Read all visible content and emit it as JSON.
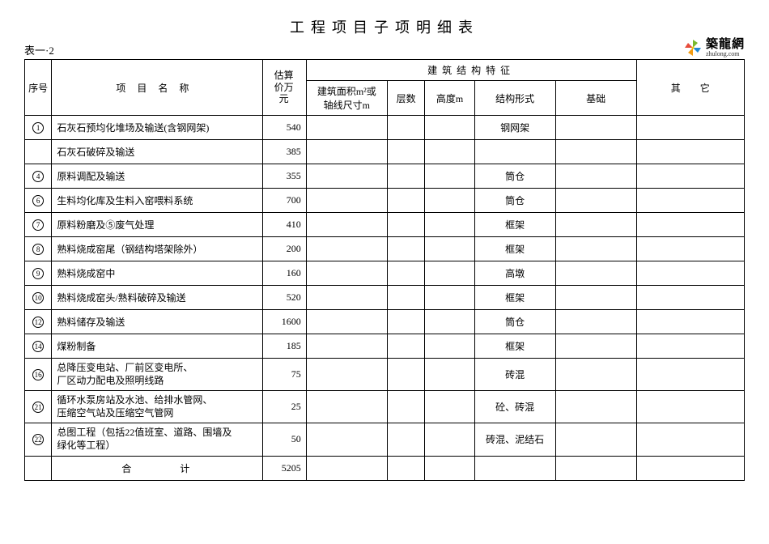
{
  "title": "工程项目子项明细表",
  "table_label": "表一·2",
  "logo": {
    "cn": "築龍網",
    "en": "zhulong.com"
  },
  "headers": {
    "seq": "序号",
    "name": "项目名称",
    "estimate": "估算价万元",
    "struct_group": "建筑结构特征",
    "area": "建筑面积m²或\n轴线尺寸m",
    "floors": "层数",
    "height": "高度m",
    "struct_form": "结构形式",
    "foundation": "基础",
    "other": "其　　它"
  },
  "rows": [
    {
      "seq": "1",
      "name": "石灰石预均化堆场及输送(含钢网架)",
      "est": "540",
      "struct": "钢网架"
    },
    {
      "seq": "",
      "name": "石灰石破碎及输送",
      "est": "385",
      "struct": ""
    },
    {
      "seq": "4",
      "name": "原料调配及输送",
      "est": "355",
      "struct": "筒仓"
    },
    {
      "seq": "6",
      "name": "生料均化库及生料入窑喂料系统",
      "est": "700",
      "struct": "筒仓"
    },
    {
      "seq": "7",
      "name": "原料粉磨及⑤废气处理",
      "est": "410",
      "struct": "框架"
    },
    {
      "seq": "8",
      "name": "熟料烧成窑尾（钢结构塔架除外）",
      "est": "200",
      "struct": "框架"
    },
    {
      "seq": "9",
      "name": "熟料烧成窑中",
      "est": "160",
      "struct": "高墩"
    },
    {
      "seq": "10",
      "name": "熟料烧成窑头/熟料破碎及输送",
      "est": "520",
      "struct": "框架"
    },
    {
      "seq": "12",
      "name": "熟料储存及输送",
      "est": "1600",
      "struct": "筒仓"
    },
    {
      "seq": "14",
      "name": "煤粉制备",
      "est": "185",
      "struct": "框架"
    },
    {
      "seq": "16",
      "name": "总降压变电站、厂前区变电所、\n厂区动力配电及照明线路",
      "est": "75",
      "struct": "砖混",
      "twoline": true
    },
    {
      "seq": "21",
      "name": "循环水泵房站及水池、给排水管网、\n压缩空气站及压缩空气管网",
      "est": "25",
      "struct": "砼、砖混",
      "twoline": true
    },
    {
      "seq": "22",
      "name": "总图工程（包括22值班室、道路、围墙及\n绿化等工程）",
      "est": "50",
      "struct": "砖混、泥结石",
      "twoline": true
    }
  ],
  "total": {
    "label": "合计",
    "est": "5205"
  },
  "colors": {
    "logo_green": "#7ab82e",
    "logo_blue": "#1e88d4",
    "logo_orange": "#f39c12",
    "logo_yellow": "#f1c40f",
    "logo_red": "#e74c3c"
  }
}
